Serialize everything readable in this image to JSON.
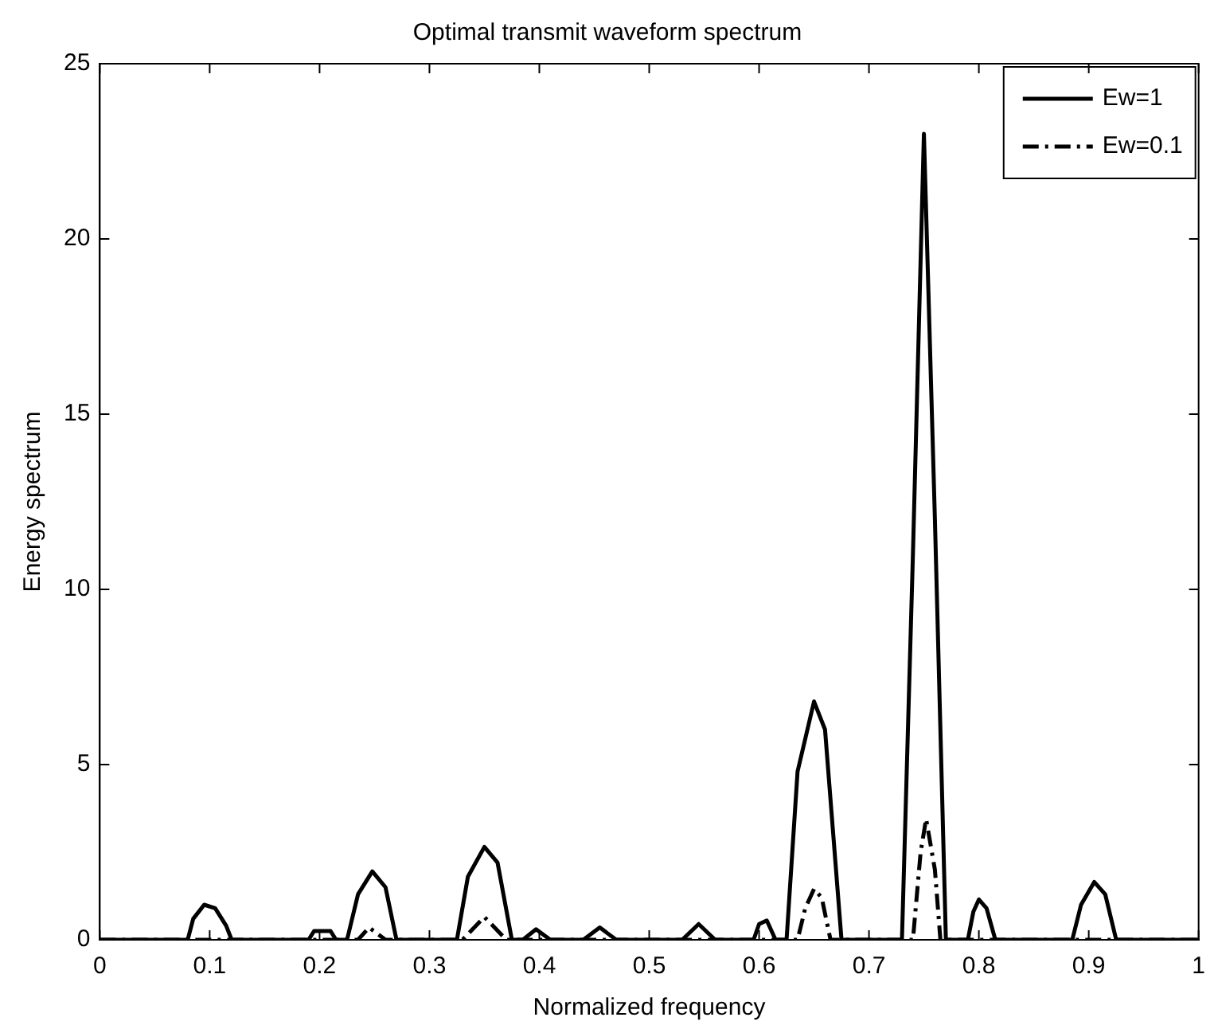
{
  "chart_data": {
    "type": "line",
    "title": "Optimal transmit waveform spectrum",
    "xlabel": "Normalized frequency",
    "ylabel": "Energy spectrum",
    "xlim": [
      0,
      1
    ],
    "xticks": [
      0,
      0.1,
      0.2,
      0.3,
      0.4,
      0.5,
      0.6,
      0.7,
      0.8,
      0.9,
      1
    ],
    "ylim": [
      0,
      25
    ],
    "yticks": [
      0,
      5,
      10,
      15,
      20,
      25
    ],
    "grid": false,
    "legend": "top right",
    "marker": "none",
    "series": [
      {
        "name": "Ew=1",
        "color": "#000000",
        "line_style": "solid",
        "x": [
          0,
          0.08,
          0.085,
          0.095,
          0.105,
          0.115,
          0.12,
          0.19,
          0.195,
          0.21,
          0.215,
          0.225,
          0.235,
          0.248,
          0.26,
          0.27,
          0.325,
          0.335,
          0.35,
          0.362,
          0.375,
          0.385,
          0.397,
          0.41,
          0.44,
          0.455,
          0.47,
          0.53,
          0.545,
          0.56,
          0.595,
          0.6,
          0.607,
          0.615,
          0.625,
          0.635,
          0.65,
          0.66,
          0.675,
          0.73,
          0.74,
          0.75,
          0.76,
          0.77,
          0.79,
          0.795,
          0.8,
          0.807,
          0.815,
          0.885,
          0.893,
          0.905,
          0.915,
          0.925,
          1
        ],
        "values": [
          0,
          0,
          0.6,
          1.0,
          0.9,
          0.4,
          0,
          0,
          0.25,
          0.25,
          0,
          0,
          1.3,
          1.95,
          1.5,
          0,
          0,
          1.8,
          2.65,
          2.2,
          0,
          0,
          0.3,
          0,
          0,
          0.35,
          0,
          0,
          0.45,
          0,
          0,
          0.45,
          0.55,
          0,
          0,
          4.8,
          6.8,
          6.0,
          0,
          0,
          11,
          23,
          12,
          0,
          0,
          0.8,
          1.15,
          0.9,
          0,
          0,
          1.0,
          1.65,
          1.3,
          0,
          0
        ]
      },
      {
        "name": "Ew=0.1",
        "color": "#000000",
        "line_style": "dashed",
        "x": [
          0,
          0.235,
          0.245,
          0.26,
          0.33,
          0.35,
          0.37,
          0.635,
          0.642,
          0.65,
          0.657,
          0.665,
          0.74,
          0.747,
          0.752,
          0.76,
          0.765,
          1
        ],
        "values": [
          0,
          0,
          0.35,
          0,
          0,
          0.65,
          0,
          0,
          0.9,
          1.45,
          1.2,
          0,
          0,
          2.5,
          3.45,
          2.0,
          0,
          0
        ]
      }
    ]
  }
}
